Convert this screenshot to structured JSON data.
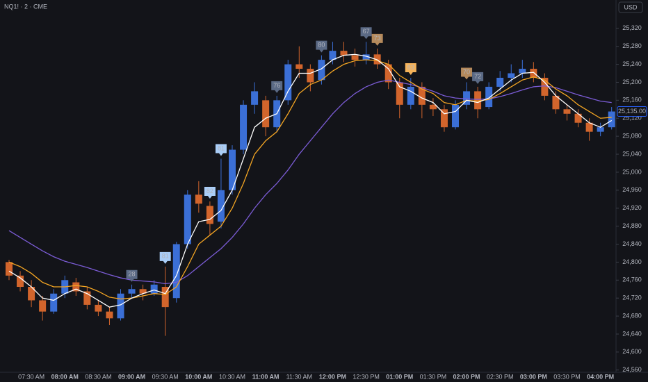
{
  "header": {
    "symbol": "NQ1! · 2 · CME",
    "currency": "USD"
  },
  "chart_data": {
    "type": "candlestick",
    "categories": [
      null,
      null,
      "07:30 AM",
      null,
      null,
      "08:00 AM",
      null,
      null,
      "08:30 AM",
      null,
      null,
      "09:00 AM",
      null,
      null,
      "09:30 AM",
      null,
      null,
      "10:00 AM",
      null,
      null,
      "10:30 AM",
      null,
      null,
      "11:00 AM",
      null,
      null,
      "11:30 AM",
      null,
      null,
      "12:00 PM",
      null,
      null,
      "12:30 PM",
      null,
      null,
      "01:00 PM",
      null,
      null,
      "01:30 PM",
      null,
      null,
      "02:00 PM",
      null,
      null,
      "02:30 PM",
      null,
      null,
      "03:00 PM",
      null,
      null,
      "03:30 PM",
      null,
      null,
      "04:00 PM",
      null
    ],
    "open": [
      24800,
      24770,
      24745,
      24715,
      24690,
      24730,
      24755,
      24735,
      24705,
      24690,
      24675,
      24730,
      24740,
      24730,
      24745,
      24720,
      24840,
      24950,
      24925,
      24890,
      24960,
      25050,
      25150,
      25160,
      25100,
      25160,
      25240,
      25230,
      25205,
      25250,
      25270,
      25260,
      25250,
      25262,
      25240,
      25200,
      25150,
      25190,
      25150,
      25140,
      25100,
      25150,
      25180,
      25145,
      25190,
      25210,
      25220,
      25230,
      25210,
      25170,
      25140,
      25130,
      25110,
      25090,
      25100
    ],
    "high": [
      24805,
      24780,
      24760,
      24725,
      24740,
      24770,
      24765,
      24745,
      24715,
      24700,
      24740,
      24750,
      24750,
      24760,
      24790,
      24845,
      24960,
      24980,
      24935,
      25030,
      25060,
      25160,
      25200,
      25170,
      25170,
      25250,
      25280,
      25240,
      25260,
      25290,
      25290,
      25275,
      25290,
      25275,
      25250,
      25210,
      25210,
      25200,
      25165,
      25150,
      25160,
      25200,
      25190,
      25200,
      25225,
      25240,
      25250,
      25245,
      25220,
      25180,
      25150,
      25140,
      25120,
      25110,
      25145
    ],
    "low": [
      24760,
      24735,
      24700,
      24670,
      24685,
      24720,
      24725,
      24695,
      24680,
      24660,
      24670,
      24720,
      24715,
      24725,
      24636,
      24710,
      24830,
      24910,
      24860,
      24875,
      24950,
      25040,
      25130,
      25080,
      25090,
      25150,
      25210,
      25180,
      25195,
      25240,
      25245,
      25235,
      25240,
      25230,
      25185,
      25120,
      25140,
      25120,
      25125,
      25090,
      25095,
      25140,
      25120,
      25140,
      25180,
      25200,
      25210,
      25200,
      25160,
      25130,
      25115,
      25100,
      25070,
      25080,
      25095
    ],
    "close": [
      24770,
      24745,
      24715,
      24690,
      24730,
      24760,
      24735,
      24705,
      24690,
      24675,
      24730,
      24740,
      24730,
      24750,
      24700,
      24840,
      24950,
      24930,
      24885,
      24960,
      25050,
      25150,
      25180,
      25100,
      25160,
      25240,
      25230,
      25200,
      25250,
      25270,
      25260,
      25250,
      25262,
      25240,
      25200,
      25150,
      25190,
      25150,
      25140,
      25100,
      25150,
      25180,
      25140,
      25190,
      25210,
      25220,
      25230,
      25210,
      25170,
      25140,
      25130,
      25110,
      25090,
      25100,
      25135
    ],
    "up_color": "#3b6fd6",
    "down_color": "#d2652c",
    "series": [
      {
        "color": "#ffffff",
        "values": [
          24780,
          24765,
          24745,
          24720,
          24715,
          24730,
          24740,
          24730,
          24715,
          24700,
          24705,
          24720,
          24730,
          24738,
          24730,
          24770,
          24840,
          24890,
          24895,
          24915,
          24960,
          25030,
          25100,
          25120,
          25130,
          25180,
          25220,
          25220,
          25230,
          25250,
          25260,
          25262,
          25258,
          25250,
          25230,
          25190,
          25180,
          25165,
          25155,
          25130,
          25135,
          25160,
          25155,
          25165,
          25185,
          25205,
          25220,
          25222,
          25200,
          25170,
          25150,
          25130,
          25110,
          25100,
          25115
        ]
      },
      {
        "color": "#f5a623",
        "values": [
          24800,
          24790,
          24775,
          24755,
          24745,
          24745,
          24748,
          24745,
          24735,
          24722,
          24718,
          24720,
          24725,
          24730,
          24728,
          24745,
          24790,
          24840,
          24860,
          24880,
          24920,
          24975,
          25040,
          25070,
          25090,
          25130,
          25175,
          25195,
          25205,
          25225,
          25240,
          25248,
          25250,
          25248,
          25240,
          25215,
          25200,
          25185,
          25175,
          25155,
          25150,
          25160,
          25158,
          25162,
          25175,
          25190,
          25205,
          25212,
          25205,
          25185,
          25170,
          25150,
          25135,
          25120,
          25122
        ]
      },
      {
        "color": "#7b5cd6",
        "values": [
          24870,
          24855,
          24840,
          24825,
          24812,
          24802,
          24795,
          24788,
          24780,
          24772,
          24765,
          24760,
          24758,
          24756,
          24752,
          24755,
          24770,
          24790,
          24810,
          24830,
          24855,
          24885,
          24920,
          24950,
          24975,
          25005,
          25040,
          25070,
          25100,
          25130,
          25155,
          25175,
          25190,
          25200,
          25205,
          25200,
          25195,
          25188,
          25180,
          25170,
          25165,
          25163,
          25162,
          25163,
          25168,
          25175,
          25183,
          25190,
          25192,
          25188,
          25180,
          25172,
          25165,
          25158,
          25155
        ]
      }
    ],
    "annotations": [
      {
        "text": "28",
        "candle": 11,
        "color": "#5b6a85"
      },
      {
        "text": "81",
        "candle": 14,
        "color": "#a9cdf7"
      },
      {
        "text": "82",
        "candle": 18,
        "color": "#a9cdf7"
      },
      {
        "text": "81",
        "candle": 19,
        "color": "#a9cdf7"
      },
      {
        "text": "76",
        "candle": 24,
        "color": "#5b6a85"
      },
      {
        "text": "80",
        "candle": 28,
        "color": "#5b6a85"
      },
      {
        "text": "67",
        "candle": 32,
        "color": "#5b6a85"
      },
      {
        "text": "73",
        "candle": 33,
        "color": "#b58a5c"
      },
      {
        "text": "83",
        "candle": 36,
        "color": "#f5b35a"
      },
      {
        "text": "70",
        "candle": 41,
        "color": "#b58a5c"
      },
      {
        "text": "72",
        "candle": 42,
        "color": "#5b6a85"
      }
    ],
    "last_price": {
      "value": 25135,
      "label": "25,135.00"
    },
    "ylim": [
      24555,
      25383
    ],
    "yticks": [
      {
        "value": 24560,
        "label": "24,560"
      },
      {
        "value": 24600,
        "label": "24,600"
      },
      {
        "value": 24640,
        "label": "24,640"
      },
      {
        "value": 24680,
        "label": "24,680"
      },
      {
        "value": 24720,
        "label": "24,720"
      },
      {
        "value": 24760,
        "label": "24,760"
      },
      {
        "value": 24800,
        "label": "24,800"
      },
      {
        "value": 24840,
        "label": "24,840"
      },
      {
        "value": 24880,
        "label": "24,880"
      },
      {
        "value": 24920,
        "label": "24,920"
      },
      {
        "value": 24960,
        "label": "24,960"
      },
      {
        "value": 25000,
        "label": "25,000"
      },
      {
        "value": 25040,
        "label": "25,040"
      },
      {
        "value": 25080,
        "label": "25,080"
      },
      {
        "value": 25120,
        "label": "25,120"
      },
      {
        "value": 25160,
        "label": "25,160"
      },
      {
        "value": 25200,
        "label": "25,200"
      },
      {
        "value": 25240,
        "label": "25,240"
      },
      {
        "value": 25280,
        "label": "25,280"
      },
      {
        "value": 25320,
        "label": "25,320"
      }
    ]
  }
}
